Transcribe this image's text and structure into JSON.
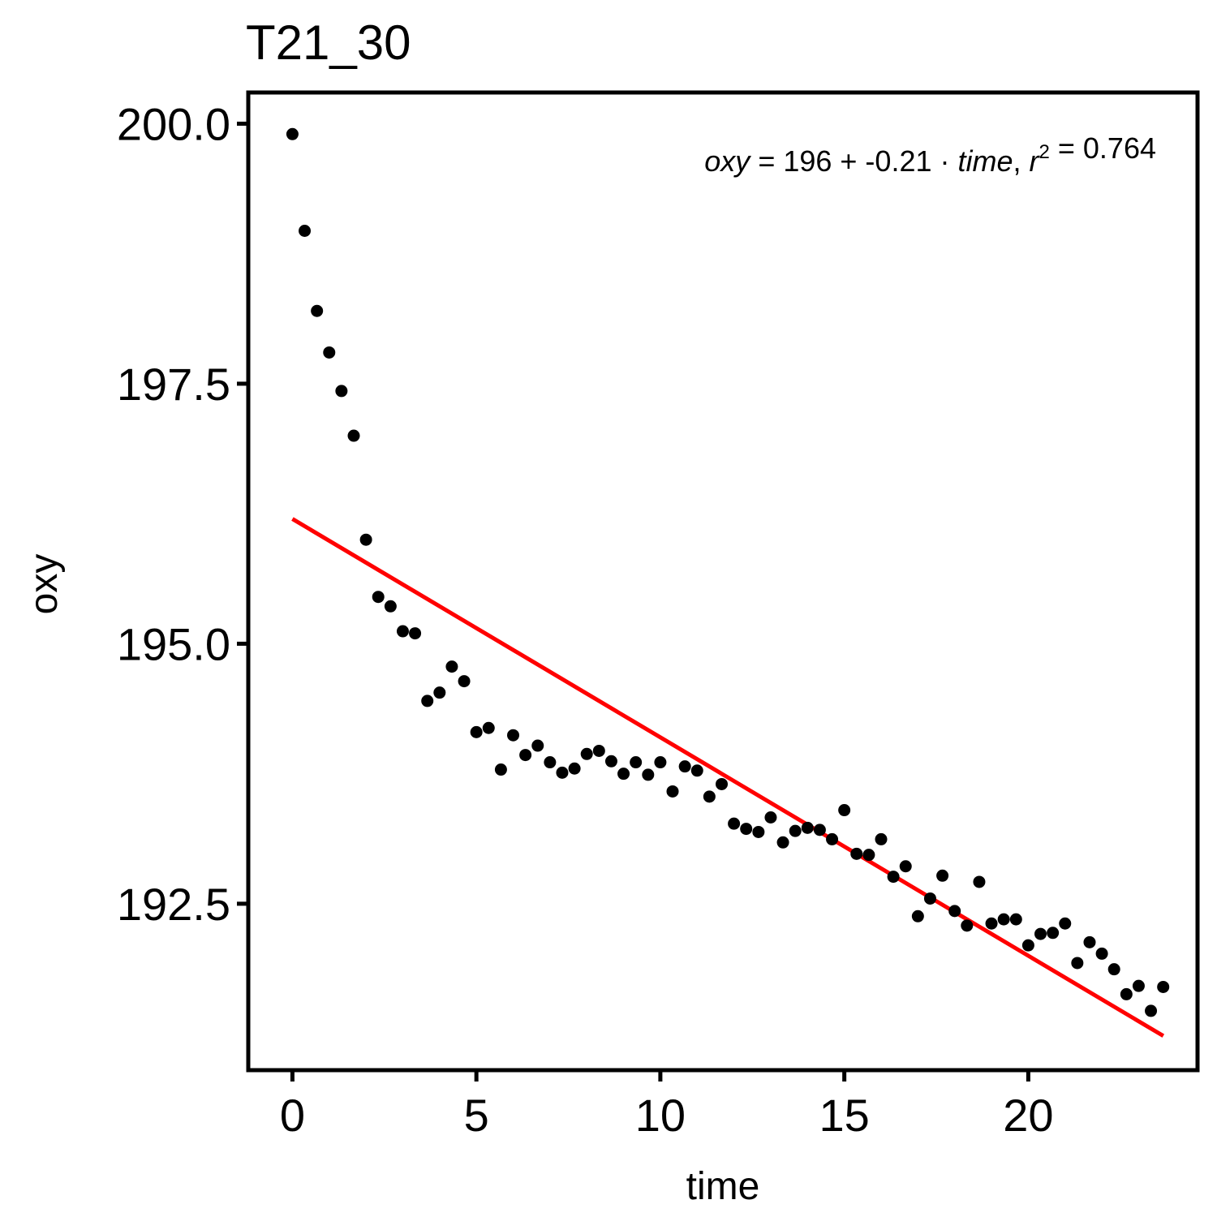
{
  "chart_data": {
    "type": "scatter",
    "title": "T21_30",
    "xlabel": "time",
    "ylabel": "oxy",
    "xlim": [
      -1.2,
      24.6
    ],
    "ylim": [
      190.9,
      200.3
    ],
    "x_ticks": [
      0,
      5,
      10,
      15,
      20
    ],
    "x_tick_labels": [
      "0",
      "5",
      "10",
      "15",
      "20"
    ],
    "y_ticks": [
      192.5,
      195.0,
      197.5,
      200.0
    ],
    "y_tick_labels": [
      "192.5",
      "195.0",
      "197.5",
      "200.0"
    ],
    "grid": false,
    "point_color": "#000000",
    "fit_color": "#ff0000",
    "fit_line": {
      "intercept": 196.2,
      "slope": -0.21,
      "x_range": [
        0,
        23.67
      ]
    },
    "equation": {
      "parts": [
        {
          "text": "oxy",
          "italic": true
        },
        {
          "text": " = 196 + -0.21 · ",
          "italic": false
        },
        {
          "text": "time",
          "italic": true
        },
        {
          "text": ",  ",
          "italic": false
        },
        {
          "text": "r",
          "italic": true,
          "sup": "2"
        },
        {
          "text": " = 0.764",
          "italic": false
        }
      ]
    },
    "series": [
      {
        "x": [
          0,
          0.333,
          0.667,
          1.0,
          1.333,
          1.667,
          2.0,
          2.333,
          2.667,
          3.0,
          3.333,
          3.667,
          4.0,
          4.333,
          4.667,
          5.0,
          5.333,
          5.667,
          6.0,
          6.333,
          6.667,
          7.0,
          7.333,
          7.667,
          8.0,
          8.333,
          8.667,
          9.0,
          9.333,
          9.667,
          10.0,
          10.333,
          10.667,
          11.0,
          11.333,
          11.667,
          12.0,
          12.333,
          12.667,
          13.0,
          13.333,
          13.667,
          14.0,
          14.333,
          14.667,
          15.0,
          15.333,
          15.667,
          16.0,
          16.333,
          16.667,
          17.0,
          17.333,
          17.667,
          18.0,
          18.333,
          18.667,
          19.0,
          19.333,
          19.667,
          20.0,
          20.333,
          20.667,
          21.0,
          21.333,
          21.667,
          22.0,
          22.333,
          22.667,
          23.0,
          23.333,
          23.667
        ],
        "y": [
          199.9,
          198.97,
          198.2,
          197.8,
          197.43,
          197.0,
          196.0,
          195.45,
          195.36,
          195.12,
          195.1,
          194.45,
          194.53,
          194.78,
          194.64,
          194.15,
          194.19,
          193.79,
          194.12,
          193.93,
          194.02,
          193.86,
          193.76,
          193.8,
          193.94,
          193.97,
          193.87,
          193.75,
          193.86,
          193.74,
          193.86,
          193.58,
          193.82,
          193.78,
          193.53,
          193.65,
          193.27,
          193.22,
          193.19,
          193.33,
          193.09,
          193.2,
          193.23,
          193.21,
          193.12,
          193.4,
          192.98,
          192.97,
          193.12,
          192.76,
          192.86,
          192.38,
          192.55,
          192.77,
          192.43,
          192.29,
          192.71,
          192.31,
          192.35,
          192.35,
          192.1,
          192.21,
          192.22,
          192.31,
          191.93,
          192.13,
          192.02,
          191.87,
          191.63,
          191.71,
          191.47,
          191.7
        ]
      }
    ]
  }
}
